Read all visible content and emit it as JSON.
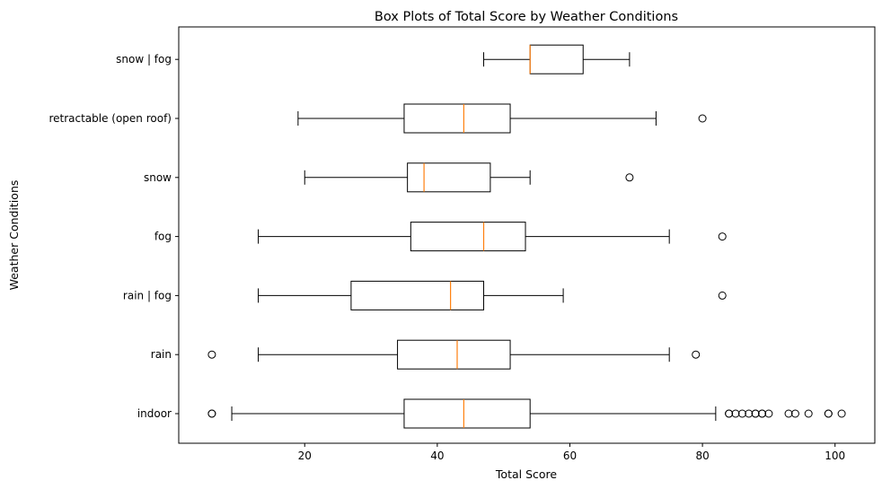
{
  "chart_data": {
    "type": "box",
    "title": "Box Plots of Total Score by Weather Conditions",
    "xlabel": "Total Score",
    "ylabel": "Weather Conditions",
    "xlim": [
      1,
      106
    ],
    "xticks": [
      20,
      40,
      60,
      80,
      100
    ],
    "grid": false,
    "colors": {
      "box": "#000000",
      "median": "#ff7f0e"
    },
    "groups": [
      {
        "label": "indoor",
        "whisker_low": 9,
        "q1": 35,
        "median": 44,
        "q3": 54,
        "whisker_high": 82,
        "outliers": [
          6,
          6,
          84,
          84,
          85,
          86,
          87,
          88,
          88,
          89,
          89,
          90,
          93,
          94,
          96,
          99,
          99,
          101
        ]
      },
      {
        "label": "rain",
        "whisker_low": 13,
        "q1": 34,
        "median": 43,
        "q3": 51,
        "whisker_high": 75,
        "outliers": [
          6,
          79
        ]
      },
      {
        "label": "rain | fog",
        "whisker_low": 13,
        "q1": 27,
        "median": 42,
        "q3": 47,
        "whisker_high": 59,
        "outliers": [
          83
        ]
      },
      {
        "label": "fog",
        "whisker_low": 13,
        "q1": 36,
        "median": 47,
        "q3": 53.3,
        "whisker_high": 75,
        "outliers": [
          83
        ]
      },
      {
        "label": "snow",
        "whisker_low": 20,
        "q1": 35.5,
        "median": 38,
        "q3": 48,
        "whisker_high": 54,
        "outliers": [
          69
        ]
      },
      {
        "label": "retractable (open roof)",
        "whisker_low": 19,
        "q1": 35,
        "median": 44,
        "q3": 51,
        "whisker_high": 73,
        "outliers": [
          80
        ]
      },
      {
        "label": "snow | fog",
        "whisker_low": 47,
        "q1": 54,
        "median": 54,
        "q3": 62,
        "whisker_high": 69,
        "outliers": []
      }
    ]
  }
}
